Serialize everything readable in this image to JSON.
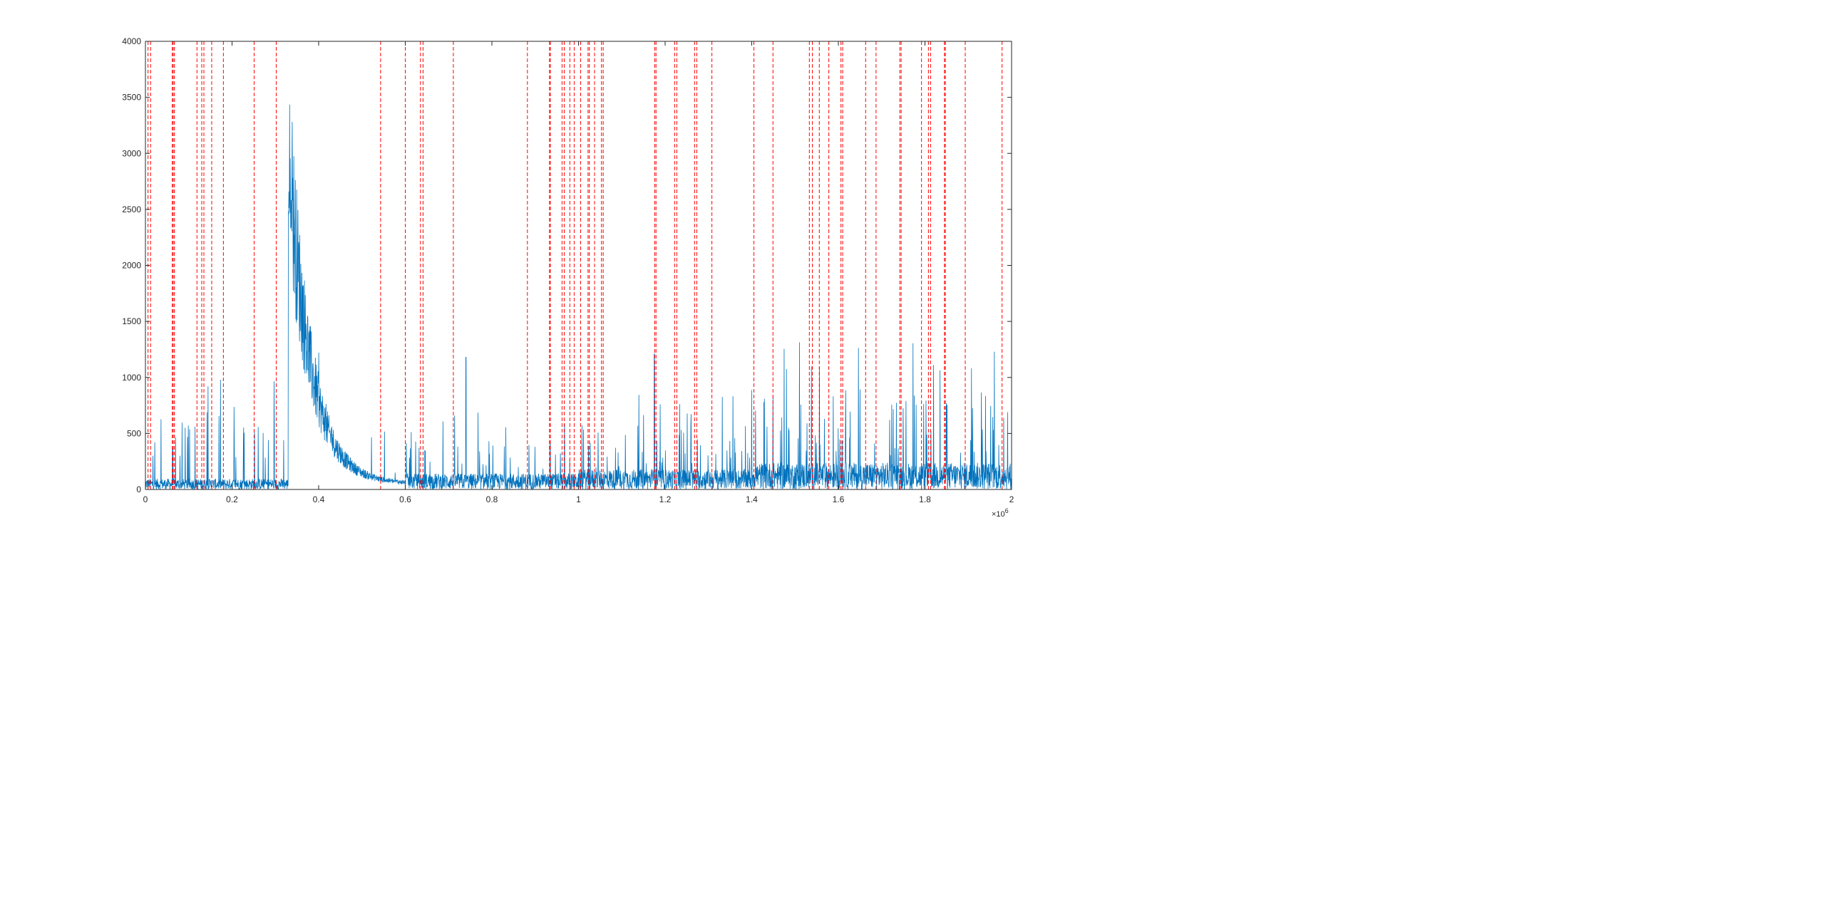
{
  "chart_data": {
    "type": "line",
    "title": "",
    "xlabel": "",
    "ylabel": "",
    "xlim": [
      0,
      2000000
    ],
    "ylim": [
      0,
      4000
    ],
    "x_ticks": [
      0,
      200000,
      400000,
      600000,
      800000,
      1000000,
      1200000,
      1400000,
      1600000,
      1800000,
      2000000
    ],
    "x_tick_labels": [
      "0",
      "0.2",
      "0.4",
      "0.6",
      "0.8",
      "1",
      "1.2",
      "1.4",
      "1.6",
      "1.8",
      "2"
    ],
    "x_exponent_label": "×10",
    "x_exponent_power": "6",
    "y_ticks": [
      0,
      500,
      1000,
      1500,
      2000,
      2500,
      3000,
      3500,
      4000
    ],
    "y_tick_labels": [
      "0",
      "500",
      "1000",
      "1500",
      "2000",
      "2500",
      "3000",
      "3500",
      "4000"
    ],
    "grid": false,
    "series": [
      {
        "color": "#0072BD",
        "style": "solid",
        "segments": [
          {
            "x_start": 0,
            "x_end": 330000,
            "baseline": 80,
            "spike_max": 1000
          },
          {
            "x_start": 330000,
            "x_end": 340000,
            "peak": 3700,
            "decay_start": 2500
          },
          {
            "x_start": 340000,
            "x_end": 600000,
            "decay_from": 2500,
            "decay_to": 50
          },
          {
            "x_start": 600000,
            "x_end": 1000000,
            "baseline": 120,
            "spike_max": 700,
            "notable_spike": {
              "x": 740000,
              "y": 1180
            }
          },
          {
            "x_start": 1000000,
            "x_end": 1400000,
            "baseline": 150,
            "spike_max": 900,
            "notable_spike": {
              "x": 1175000,
              "y": 1210
            }
          },
          {
            "x_start": 1400000,
            "x_end": 2000000,
            "baseline": 200,
            "spike_max": 1350
          }
        ]
      }
    ],
    "vertical_markers": {
      "color": "#FF0000",
      "style": "dashed",
      "x": [
        6000,
        12000,
        62000,
        64000,
        67000,
        119000,
        130000,
        135000,
        153000,
        180000,
        251000,
        302000,
        543000,
        600000,
        635000,
        641000,
        711000,
        882000,
        933000,
        935000,
        962000,
        967000,
        980000,
        990000,
        1005000,
        1022000,
        1025000,
        1037000,
        1053000,
        1057000,
        1176000,
        1179000,
        1222000,
        1227000,
        1268000,
        1273000,
        1308000,
        1405000,
        1449000,
        1533000,
        1540000,
        1556000,
        1578000,
        1606000,
        1610000,
        1663000,
        1687000,
        1742000,
        1745000,
        1792000,
        1808000,
        1813000,
        1845000,
        1847000,
        1893000,
        1978000
      ]
    }
  }
}
